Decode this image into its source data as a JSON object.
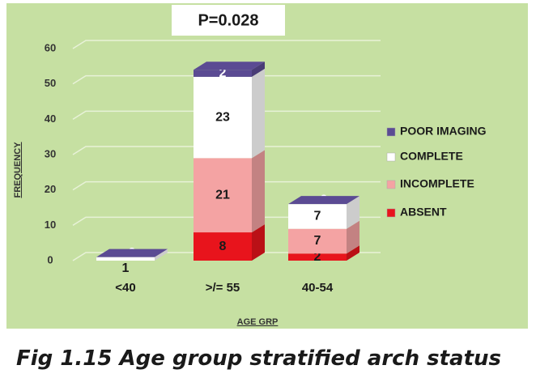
{
  "chart_data": {
    "type": "bar3d_stacked",
    "title": "P=0.028",
    "caption": "Fig 1.15 Age group stratified arch status",
    "x_label": "AGE GRP",
    "y_label": "FREQUENCY",
    "categories": [
      "<40",
      ">/= 55",
      "40-54"
    ],
    "series": [
      {
        "name": "ABSENT",
        "color": "#e8141c",
        "values": [
          null,
          8,
          2
        ]
      },
      {
        "name": "INCOMPLETE",
        "color": "#f4a3a3",
        "values": [
          null,
          21,
          7
        ]
      },
      {
        "name": "COMPLETE",
        "color": "#ffffff",
        "values": [
          1,
          23,
          7
        ]
      },
      {
        "name": "POOR IMAGING",
        "color": "#5b4b93",
        "values": [
          0,
          2,
          0
        ]
      }
    ],
    "ylim": [
      0,
      60
    ],
    "yticks": [
      0,
      10,
      20,
      30,
      40,
      50,
      60
    ],
    "grid": true,
    "legend": "right"
  }
}
